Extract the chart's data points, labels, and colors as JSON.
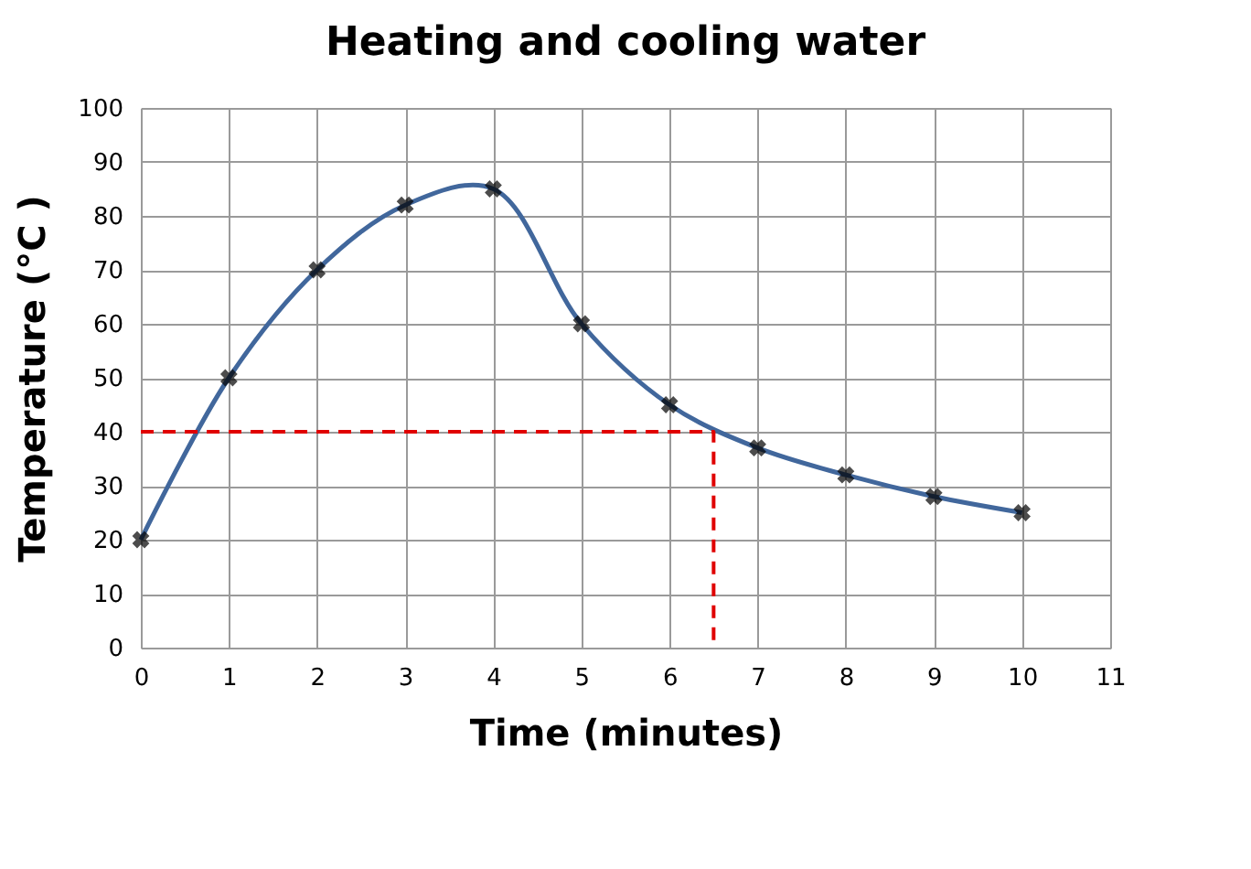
{
  "chart_data": {
    "type": "line",
    "title": "Heating and cooling water",
    "xlabel": "Time (minutes)",
    "ylabel": "Temperature (°C )",
    "xlim": [
      0,
      11
    ],
    "xticks": [
      0,
      1,
      2,
      3,
      4,
      5,
      6,
      7,
      8,
      9,
      10,
      11
    ],
    "ylim": [
      0,
      100
    ],
    "yticks": [
      0,
      10,
      20,
      30,
      40,
      50,
      60,
      70,
      80,
      90,
      100
    ],
    "grid": true,
    "series": [
      {
        "color": "#41679c",
        "marker": "none",
        "line_style": "solid",
        "x": [
          0,
          1,
          2,
          3,
          4,
          5,
          6,
          7,
          8,
          9,
          10
        ],
        "values": [
          20,
          50,
          70,
          82,
          85,
          60,
          45,
          37,
          32,
          28,
          25
        ]
      },
      {
        "type": "scatter",
        "color": "#000000",
        "marker": "cross",
        "x": [
          0,
          1,
          2,
          3,
          4,
          5,
          6,
          7,
          8,
          9,
          10
        ],
        "values": [
          20,
          50,
          70,
          82,
          85,
          60,
          45,
          37,
          32,
          28,
          25
        ]
      },
      {
        "color": "#e00000",
        "marker": "none",
        "line_style": "dashed",
        "x": [
          0,
          6.5,
          6.5
        ],
        "values": [
          40,
          40,
          0
        ]
      }
    ]
  }
}
